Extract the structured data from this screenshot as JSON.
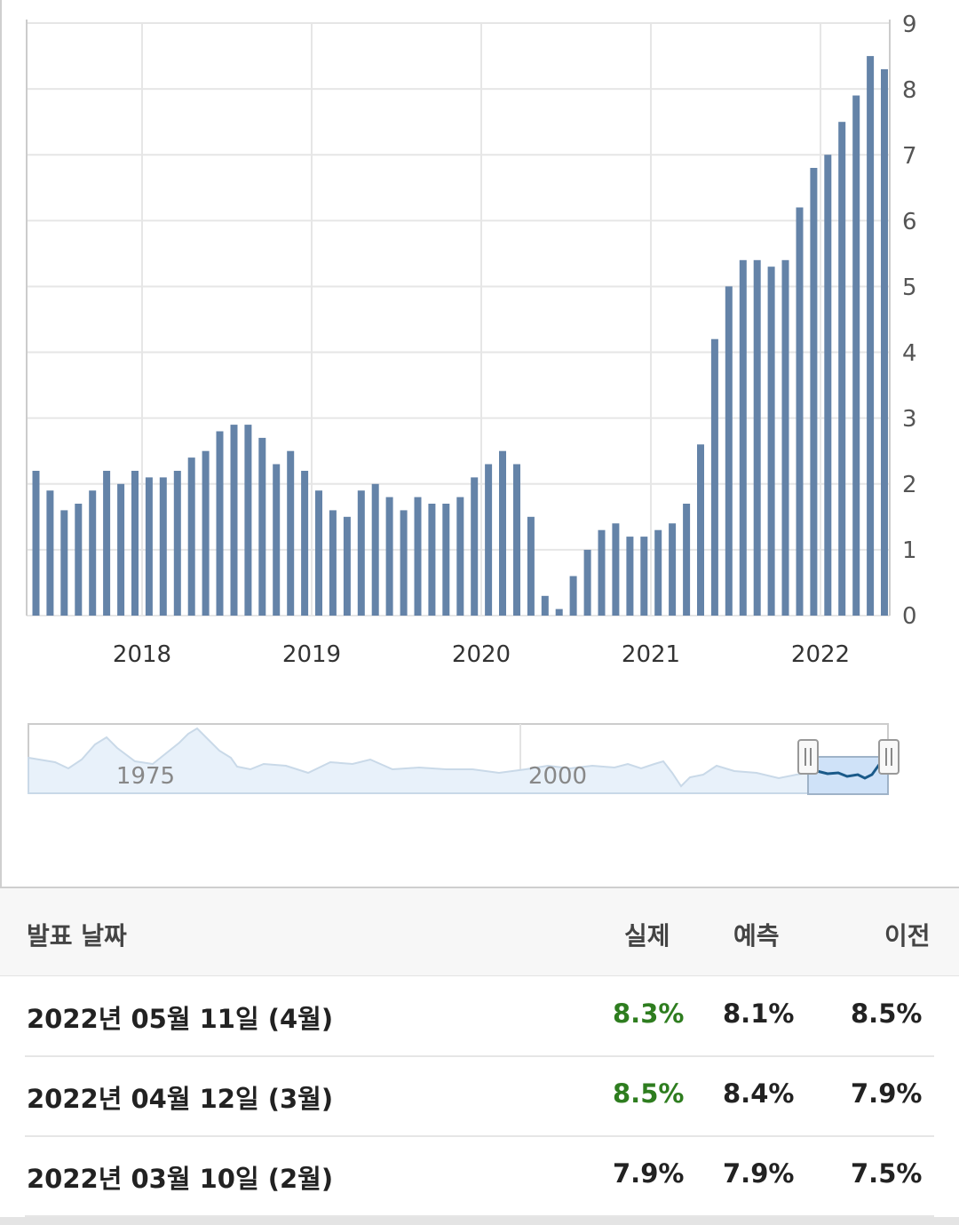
{
  "chart_data": {
    "type": "bar",
    "x_tick_labels": [
      "2018",
      "2019",
      "2020",
      "2021",
      "2022"
    ],
    "y_ticks": [
      "0",
      "1",
      "2",
      "3",
      "4",
      "5",
      "6",
      "7",
      "8",
      "9"
    ],
    "ylim": [
      0,
      9
    ],
    "grid": true,
    "y_axis_side": "right",
    "bar_color": "#6483a8",
    "series": [
      {
        "x": [
          "2017-06",
          "2017-07",
          "2017-08",
          "2017-09",
          "2017-10",
          "2017-11",
          "2017-12",
          "2018-01",
          "2018-02",
          "2018-03",
          "2018-04",
          "2018-05",
          "2018-06",
          "2018-07",
          "2018-08",
          "2018-09",
          "2018-10",
          "2018-11",
          "2018-12",
          "2019-01",
          "2019-02",
          "2019-03",
          "2019-04",
          "2019-05",
          "2019-06",
          "2019-07",
          "2019-08",
          "2019-09",
          "2019-10",
          "2019-11",
          "2019-12",
          "2020-01",
          "2020-02",
          "2020-03",
          "2020-04",
          "2020-05",
          "2020-06",
          "2020-07",
          "2020-08",
          "2020-09",
          "2020-10",
          "2020-11",
          "2020-12",
          "2021-01",
          "2021-02",
          "2021-03",
          "2021-04",
          "2021-05",
          "2021-06",
          "2021-07",
          "2021-08",
          "2021-09",
          "2021-10",
          "2021-11",
          "2021-12",
          "2022-01",
          "2022-02",
          "2022-03",
          "2022-04"
        ],
        "values": [
          1.6,
          1.7,
          1.9,
          2.2,
          2.0,
          2.2,
          2.1,
          2.1,
          2.2,
          2.4,
          2.5,
          2.8,
          2.9,
          2.9,
          2.7,
          2.3,
          2.5,
          2.2,
          1.9,
          1.6,
          1.5,
          1.9,
          2.0,
          1.8,
          1.6,
          1.8,
          1.7,
          1.7,
          1.8,
          2.1,
          2.3,
          2.5,
          2.3,
          1.5,
          0.3,
          0.1,
          0.6,
          1.0,
          1.3,
          1.4,
          1.2,
          1.2,
          1.3,
          1.4,
          1.7,
          2.6,
          4.2,
          5.0,
          5.4,
          5.4,
          5.3,
          5.4,
          6.2,
          6.8,
          7.0,
          7.5,
          7.9,
          8.5,
          8.3
        ]
      }
    ],
    "leading_values": [
      2.2,
      1.9
    ]
  },
  "navigator": {
    "labels": [
      "1975",
      "2000"
    ],
    "handle_left_icon": "grip-icon",
    "handle_right_icon": "grip-icon"
  },
  "table": {
    "headers": {
      "date": "발표 날짜",
      "actual": "실제",
      "forecast": "예측",
      "previous": "이전"
    },
    "rows": [
      {
        "date": "2022년 05월 11일 (4월)",
        "actual": "8.3%",
        "forecast": "8.1%",
        "previous": "8.5%",
        "actual_color": "#2e7d1f"
      },
      {
        "date": "2022년 04월 12일 (3월)",
        "actual": "8.5%",
        "forecast": "8.4%",
        "previous": "7.9%",
        "actual_color": "#2e7d1f"
      },
      {
        "date": "2022년 03월 10일 (2월)",
        "actual": "7.9%",
        "forecast": "7.9%",
        "previous": "7.5%",
        "actual_color": "#222222"
      }
    ]
  }
}
